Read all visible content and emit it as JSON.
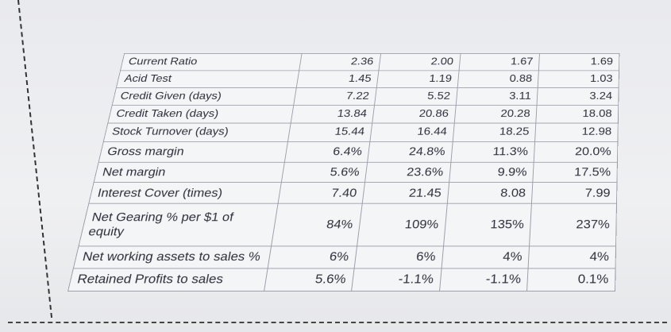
{
  "table": {
    "rows": [
      [
        "Current Ratio",
        "2.36",
        "2.00",
        "1.67",
        "1.69"
      ],
      [
        "Acid Test",
        "1.45",
        "1.19",
        "0.88",
        "1.03"
      ],
      [
        "Credit Given (days)",
        "7.22",
        "5.52",
        "3.11",
        "3.24"
      ],
      [
        "Credit Taken (days)",
        "13.84",
        "20.86",
        "20.28",
        "18.08"
      ],
      [
        "Stock Turnover (days)",
        "15.44",
        "16.44",
        "18.25",
        "12.98"
      ],
      [
        "Gross margin",
        "6.4%",
        "24.8%",
        "11.3%",
        "20.0%"
      ],
      [
        "Net margin",
        "5.6%",
        "23.6%",
        "9.9%",
        "17.5%"
      ],
      [
        "Interest Cover (times)",
        "7.40",
        "21.45",
        "8.08",
        "7.99"
      ],
      [
        "Net Gearing % per $1 of equity",
        "84%",
        "109%",
        "135%",
        "237%"
      ],
      [
        "Net working assets to sales %",
        "6%",
        "6%",
        "4%",
        "4%"
      ],
      [
        "Retained Profits to sales",
        "5.6%",
        "-1.1%",
        "-1.1%",
        "0.1%"
      ]
    ]
  }
}
